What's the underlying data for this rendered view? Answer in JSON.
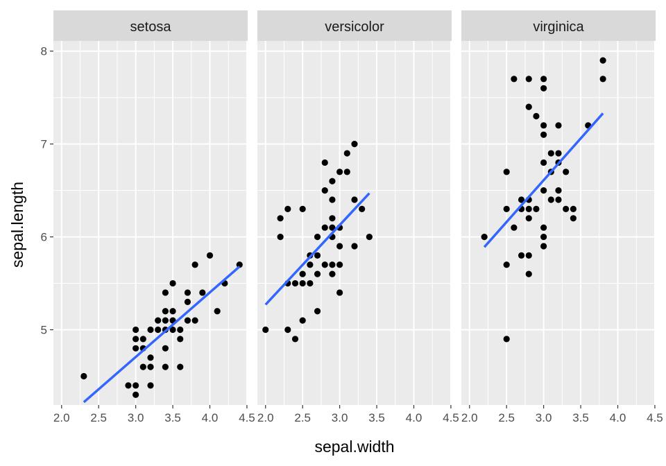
{
  "chart_data": {
    "type": "scatter",
    "title": "",
    "xlabel": "sepal.width",
    "ylabel": "sepal.length",
    "xlim": [
      1.89,
      4.51
    ],
    "ylim": [
      4.19,
      8.11
    ],
    "x_ticks": [
      2.0,
      2.5,
      3.0,
      3.5,
      4.0,
      4.5
    ],
    "x_tick_labels": [
      "2.0",
      "2.5",
      "3.0",
      "3.5",
      "4.0",
      "4.5"
    ],
    "y_ticks": [
      5,
      6,
      7,
      8
    ],
    "y_tick_labels": [
      "5",
      "6",
      "7",
      "8"
    ],
    "grid": true,
    "point_color": "#000000",
    "fit_line_color": "#3366FF",
    "panel_background": "#EBEBEB",
    "strip_background": "#D9D9D9",
    "facets": [
      {
        "label": "setosa",
        "points": [
          [
            2.3,
            4.5
          ],
          [
            2.9,
            4.4
          ],
          [
            3.0,
            4.4
          ],
          [
            3.2,
            4.4
          ],
          [
            3.0,
            4.3
          ],
          [
            3.0,
            4.8
          ],
          [
            3.0,
            4.9
          ],
          [
            3.0,
            5.0
          ],
          [
            3.1,
            4.8
          ],
          [
            3.1,
            4.9
          ],
          [
            3.1,
            4.6
          ],
          [
            3.2,
            4.6
          ],
          [
            3.2,
            4.7
          ],
          [
            3.2,
            5.0
          ],
          [
            3.3,
            5.0
          ],
          [
            3.3,
            5.1
          ],
          [
            3.4,
            5.4
          ],
          [
            3.4,
            5.2
          ],
          [
            3.4,
            5.1
          ],
          [
            3.4,
            5.0
          ],
          [
            3.4,
            4.8
          ],
          [
            3.4,
            4.6
          ],
          [
            3.5,
            5.5
          ],
          [
            3.5,
            5.2
          ],
          [
            3.5,
            5.1
          ],
          [
            3.5,
            5.0
          ],
          [
            3.6,
            5.0
          ],
          [
            3.6,
            4.9
          ],
          [
            3.6,
            4.6
          ],
          [
            3.7,
            5.4
          ],
          [
            3.7,
            5.3
          ],
          [
            3.7,
            5.1
          ],
          [
            3.8,
            5.7
          ],
          [
            3.8,
            5.1
          ],
          [
            3.9,
            5.4
          ],
          [
            4.0,
            5.8
          ],
          [
            4.1,
            5.2
          ],
          [
            4.2,
            5.5
          ],
          [
            4.4,
            5.7
          ]
        ],
        "fit": [
          [
            2.3,
            4.22
          ],
          [
            4.4,
            5.68
          ]
        ]
      },
      {
        "label": "versicolor",
        "points": [
          [
            2.0,
            5.0
          ],
          [
            2.2,
            6.2
          ],
          [
            2.2,
            6.0
          ],
          [
            2.3,
            6.3
          ],
          [
            2.3,
            5.5
          ],
          [
            2.3,
            5.0
          ],
          [
            2.4,
            5.5
          ],
          [
            2.4,
            4.9
          ],
          [
            2.5,
            6.3
          ],
          [
            2.5,
            5.6
          ],
          [
            2.5,
            5.5
          ],
          [
            2.5,
            5.1
          ],
          [
            2.6,
            5.8
          ],
          [
            2.6,
            5.7
          ],
          [
            2.6,
            5.5
          ],
          [
            2.7,
            6.0
          ],
          [
            2.7,
            5.8
          ],
          [
            2.7,
            5.6
          ],
          [
            2.7,
            5.2
          ],
          [
            2.8,
            6.8
          ],
          [
            2.8,
            6.5
          ],
          [
            2.8,
            6.1
          ],
          [
            2.8,
            5.7
          ],
          [
            2.9,
            6.6
          ],
          [
            2.9,
            6.4
          ],
          [
            2.9,
            6.2
          ],
          [
            2.9,
            6.1
          ],
          [
            2.9,
            6.0
          ],
          [
            2.9,
            5.7
          ],
          [
            2.9,
            5.6
          ],
          [
            3.0,
            6.7
          ],
          [
            3.0,
            6.1
          ],
          [
            3.0,
            5.9
          ],
          [
            3.0,
            5.7
          ],
          [
            3.0,
            5.4
          ],
          [
            3.1,
            6.9
          ],
          [
            3.1,
            6.7
          ],
          [
            3.2,
            7.0
          ],
          [
            3.2,
            6.4
          ],
          [
            3.2,
            5.9
          ],
          [
            3.3,
            6.3
          ],
          [
            3.4,
            6.0
          ]
        ],
        "fit": [
          [
            2.0,
            5.27
          ],
          [
            3.4,
            6.47
          ]
        ]
      },
      {
        "label": "virginica",
        "points": [
          [
            2.2,
            6.0
          ],
          [
            2.5,
            6.7
          ],
          [
            2.5,
            6.3
          ],
          [
            2.5,
            5.7
          ],
          [
            2.5,
            4.9
          ],
          [
            2.6,
            7.7
          ],
          [
            2.6,
            6.1
          ],
          [
            2.7,
            6.4
          ],
          [
            2.7,
            6.3
          ],
          [
            2.7,
            5.8
          ],
          [
            2.8,
            7.7
          ],
          [
            2.8,
            7.4
          ],
          [
            2.8,
            6.4
          ],
          [
            2.8,
            6.3
          ],
          [
            2.8,
            6.2
          ],
          [
            2.8,
            5.8
          ],
          [
            2.8,
            5.6
          ],
          [
            2.9,
            7.3
          ],
          [
            2.9,
            6.3
          ],
          [
            3.0,
            7.7
          ],
          [
            3.0,
            7.6
          ],
          [
            3.0,
            7.2
          ],
          [
            3.0,
            7.1
          ],
          [
            3.0,
            6.8
          ],
          [
            3.0,
            6.5
          ],
          [
            3.0,
            6.1
          ],
          [
            3.0,
            6.0
          ],
          [
            3.0,
            5.9
          ],
          [
            3.1,
            6.9
          ],
          [
            3.1,
            6.7
          ],
          [
            3.1,
            6.4
          ],
          [
            3.2,
            7.2
          ],
          [
            3.2,
            6.9
          ],
          [
            3.2,
            6.8
          ],
          [
            3.2,
            6.5
          ],
          [
            3.2,
            6.4
          ],
          [
            3.3,
            6.7
          ],
          [
            3.3,
            6.3
          ],
          [
            3.4,
            6.3
          ],
          [
            3.4,
            6.2
          ],
          [
            3.6,
            7.2
          ],
          [
            3.8,
            7.9
          ],
          [
            3.8,
            7.7
          ]
        ],
        "fit": [
          [
            2.2,
            5.89
          ],
          [
            3.8,
            7.33
          ]
        ]
      }
    ]
  }
}
